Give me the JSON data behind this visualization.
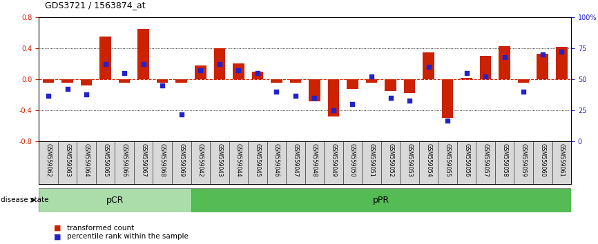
{
  "title": "GDS3721 / 1563874_at",
  "samples": [
    "GSM559062",
    "GSM559063",
    "GSM559064",
    "GSM559065",
    "GSM559066",
    "GSM559067",
    "GSM559068",
    "GSM559069",
    "GSM559042",
    "GSM559043",
    "GSM559044",
    "GSM559045",
    "GSM559046",
    "GSM559047",
    "GSM559048",
    "GSM559049",
    "GSM559050",
    "GSM559051",
    "GSM559052",
    "GSM559053",
    "GSM559054",
    "GSM559055",
    "GSM559056",
    "GSM559057",
    "GSM559058",
    "GSM559059",
    "GSM559060",
    "GSM559061"
  ],
  "bar_values": [
    -0.04,
    -0.04,
    -0.08,
    0.55,
    -0.04,
    0.65,
    -0.04,
    -0.04,
    0.18,
    0.4,
    0.2,
    0.1,
    -0.04,
    -0.04,
    -0.28,
    -0.48,
    -0.12,
    -0.04,
    -0.15,
    -0.18,
    0.35,
    -0.5,
    0.02,
    0.3,
    0.43,
    -0.04,
    0.33,
    0.42
  ],
  "percentile_values": [
    37,
    42,
    38,
    62,
    55,
    62,
    45,
    22,
    57,
    62,
    57,
    55,
    40,
    37,
    35,
    25,
    30,
    52,
    35,
    33,
    60,
    17,
    55,
    52,
    68,
    40,
    70,
    72
  ],
  "pCR_count": 8,
  "pPR_count": 20,
  "ylim_left": [
    -0.8,
    0.8
  ],
  "ylim_right": [
    0,
    100
  ],
  "yticks_left": [
    -0.8,
    -0.4,
    0.0,
    0.4,
    0.8
  ],
  "yticks_right": [
    0,
    25,
    50,
    75,
    100
  ],
  "ytick_labels_right": [
    "0",
    "25",
    "50",
    "75",
    "100%"
  ],
  "bar_color": "#CC2200",
  "dot_color": "#2222CC",
  "pCR_color": "#AADDAA",
  "pPR_color": "#55BB55",
  "disease_state_label": "disease state",
  "pCR_label": "pCR",
  "pPR_label": "pPR",
  "legend_bar_label": "transformed count",
  "legend_dot_label": "percentile rank within the sample"
}
